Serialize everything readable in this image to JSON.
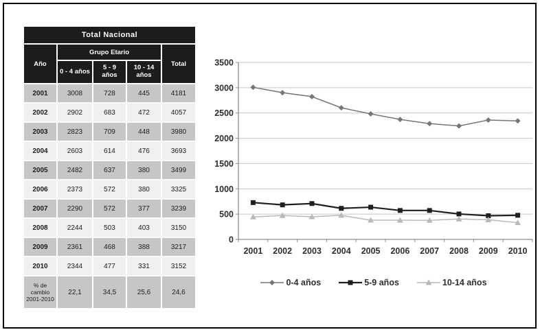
{
  "table": {
    "title": "Total Nacional",
    "col_year": "Año",
    "group_header": "Grupo Etario",
    "age_columns": [
      "0 - 4 años",
      "5 - 9 años",
      "10 - 14 años"
    ],
    "col_total": "Total",
    "rows": [
      [
        "2001",
        "3008",
        "728",
        "445",
        "4181"
      ],
      [
        "2002",
        "2902",
        "683",
        "472",
        "4057"
      ],
      [
        "2003",
        "2823",
        "709",
        "448",
        "3980"
      ],
      [
        "2004",
        "2603",
        "614",
        "476",
        "3693"
      ],
      [
        "2005",
        "2482",
        "637",
        "380",
        "3499"
      ],
      [
        "2006",
        "2373",
        "572",
        "380",
        "3325"
      ],
      [
        "2007",
        "2290",
        "572",
        "377",
        "3239"
      ],
      [
        "2008",
        "2244",
        "503",
        "403",
        "3150"
      ],
      [
        "2009",
        "2361",
        "468",
        "388",
        "3217"
      ],
      [
        "2010",
        "2344",
        "477",
        "331",
        "3152"
      ],
      [
        "% de cambio 2001-2010",
        "22,1",
        "34,5",
        "25,6",
        "24,6"
      ]
    ]
  },
  "chart_data": {
    "type": "line",
    "title": "",
    "xlabel": "",
    "ylabel": "",
    "x": [
      "2001",
      "2002",
      "2003",
      "2004",
      "2005",
      "2006",
      "2007",
      "2008",
      "2009",
      "2010"
    ],
    "series": [
      {
        "name": "0-4 años",
        "marker": "diamond",
        "color": "#767676",
        "width": 1.5,
        "values": [
          3008,
          2902,
          2823,
          2603,
          2482,
          2373,
          2290,
          2244,
          2361,
          2344
        ]
      },
      {
        "name": "5-9 años",
        "marker": "square",
        "color": "#1f1f1f",
        "width": 2.2,
        "values": [
          728,
          683,
          709,
          614,
          637,
          572,
          572,
          503,
          468,
          477
        ]
      },
      {
        "name": "10-14 años",
        "marker": "triangle",
        "color": "#b9b9b9",
        "width": 1.5,
        "values": [
          445,
          472,
          448,
          476,
          380,
          380,
          377,
          403,
          388,
          331
        ]
      }
    ],
    "ylim": [
      0,
      3500
    ],
    "ytick_step": 500,
    "grid": true,
    "legend_position": "bottom"
  },
  "colors": {
    "header_bg": "#1c1c1c",
    "row_dark": "#c6c6c6",
    "row_light": "#efefef",
    "grid": "#c6c6c6",
    "axis": "#8d8d8d",
    "text": "#2e2e2e",
    "frame_border": "#000000"
  }
}
